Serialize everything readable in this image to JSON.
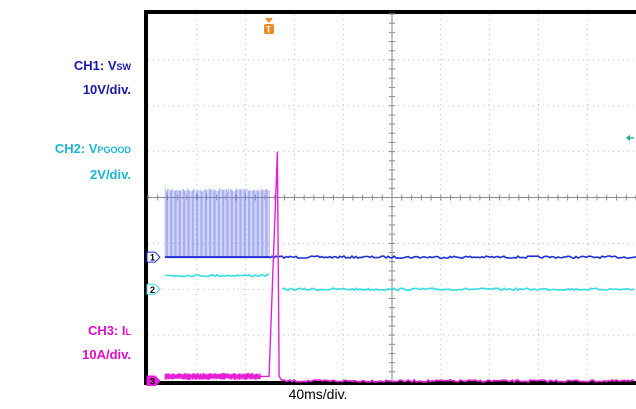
{
  "labels": {
    "ch1_name_prefix": "CH1: V",
    "ch1_name_sub": "SW",
    "ch1_scale": "10V/div.",
    "ch2_name_prefix": "CH2: V",
    "ch2_name_sub": "PGOOD",
    "ch2_scale": "2V/div.",
    "ch3_name_prefix": "CH3: I",
    "ch3_name_sub": "L",
    "ch3_scale": "10A/div.",
    "timebase": "40ms/div."
  },
  "colors": {
    "ch1": "#1f2fd6",
    "ch1_burst": "#6f7ae8",
    "ch2": "#33dde8",
    "ch3": "#e61fd6",
    "trigger": "#f08a24",
    "frame": "#000000",
    "grid": "#bfbfbf"
  },
  "chart_data": {
    "type": "line",
    "grid": true,
    "x_divisions": 10,
    "y_divisions": 8,
    "timebase": "40ms/div.",
    "trigger_marker": "T",
    "markers": [
      "1",
      "2",
      "3"
    ],
    "series": [
      {
        "name": "CH1: VSW",
        "scale": "10V/div.",
        "ground_div": 2.7,
        "segments": [
          {
            "x_start": 0.35,
            "x_end": 2.5,
            "kind": "switching",
            "low_div": 2.7,
            "high_div": 4.2
          },
          {
            "x_start": 2.5,
            "x_end": 10,
            "kind": "flat",
            "level_div": 2.7
          }
        ]
      },
      {
        "name": "CH2: VPGOOD",
        "scale": "2V/div.",
        "ground_div": 2.0,
        "segments": [
          {
            "x_start": 0.35,
            "x_end": 2.5,
            "kind": "flat",
            "level_div": 2.3
          },
          {
            "x_start": 2.5,
            "x_end": 2.75,
            "kind": "off"
          },
          {
            "x_start": 2.75,
            "x_end": 10,
            "kind": "flat",
            "level_div": 2.0
          }
        ]
      },
      {
        "name": "CH3: IL",
        "scale": "10A/div.",
        "ground_div": 0.0,
        "segments": [
          {
            "x_start": 0.35,
            "x_end": 2.3,
            "kind": "noise",
            "level_div": 0.1,
            "band_div": 0.08
          },
          {
            "x_start": 2.3,
            "x_end": 2.75,
            "kind": "ramp",
            "from_div": 0.1,
            "to_div": 5.0
          },
          {
            "x_start": 2.75,
            "x_end": 10,
            "kind": "flat",
            "level_div": 0.0
          }
        ]
      }
    ]
  }
}
